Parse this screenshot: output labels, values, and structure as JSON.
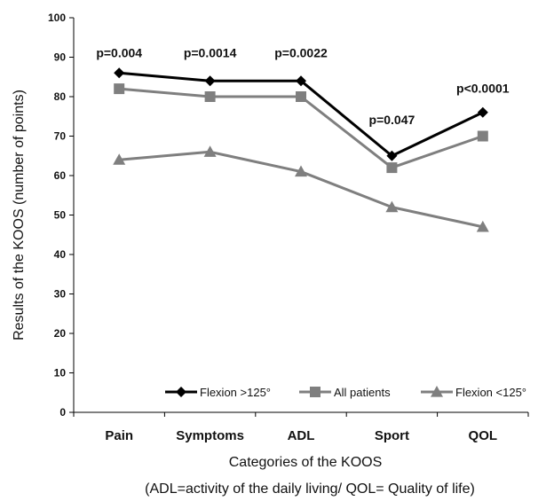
{
  "chart_data": {
    "type": "line",
    "categories": [
      "Pain",
      "Symptoms",
      "ADL",
      "Sport",
      "QOL"
    ],
    "series": [
      {
        "name": "Flexion >125°",
        "values": [
          86,
          84,
          84,
          65,
          76
        ],
        "color": "#000000",
        "marker": "diamond"
      },
      {
        "name": "All patients",
        "values": [
          82,
          80,
          80,
          62,
          70
        ],
        "color": "#7f7f7f",
        "marker": "square"
      },
      {
        "name": "Flexion <125°",
        "values": [
          64,
          66,
          61,
          52,
          47
        ],
        "color": "#7f7f7f",
        "marker": "triangle"
      }
    ],
    "annotations": [
      {
        "text": "p=0.004",
        "category": "Pain",
        "y": 90
      },
      {
        "text": "p=0.0014",
        "category": "Symptoms",
        "y": 90
      },
      {
        "text": "p=0.0022",
        "category": "ADL",
        "y": 90
      },
      {
        "text": "p=0.047",
        "category": "Sport",
        "y": 73
      },
      {
        "text": "p<0.0001",
        "category": "QOL",
        "y": 81
      }
    ],
    "title": "",
    "xlabel": "Categories of the KOOS",
    "xlabel2": "(ADL=activity of the daily living/ QOL= Quality of life)",
    "ylabel": "Results of the KOOS (number of points)",
    "ylim": [
      0,
      100
    ],
    "yticks": [
      0,
      10,
      20,
      30,
      40,
      50,
      60,
      70,
      80,
      90,
      100
    ],
    "grid": false,
    "legend": "bottom-inside"
  }
}
